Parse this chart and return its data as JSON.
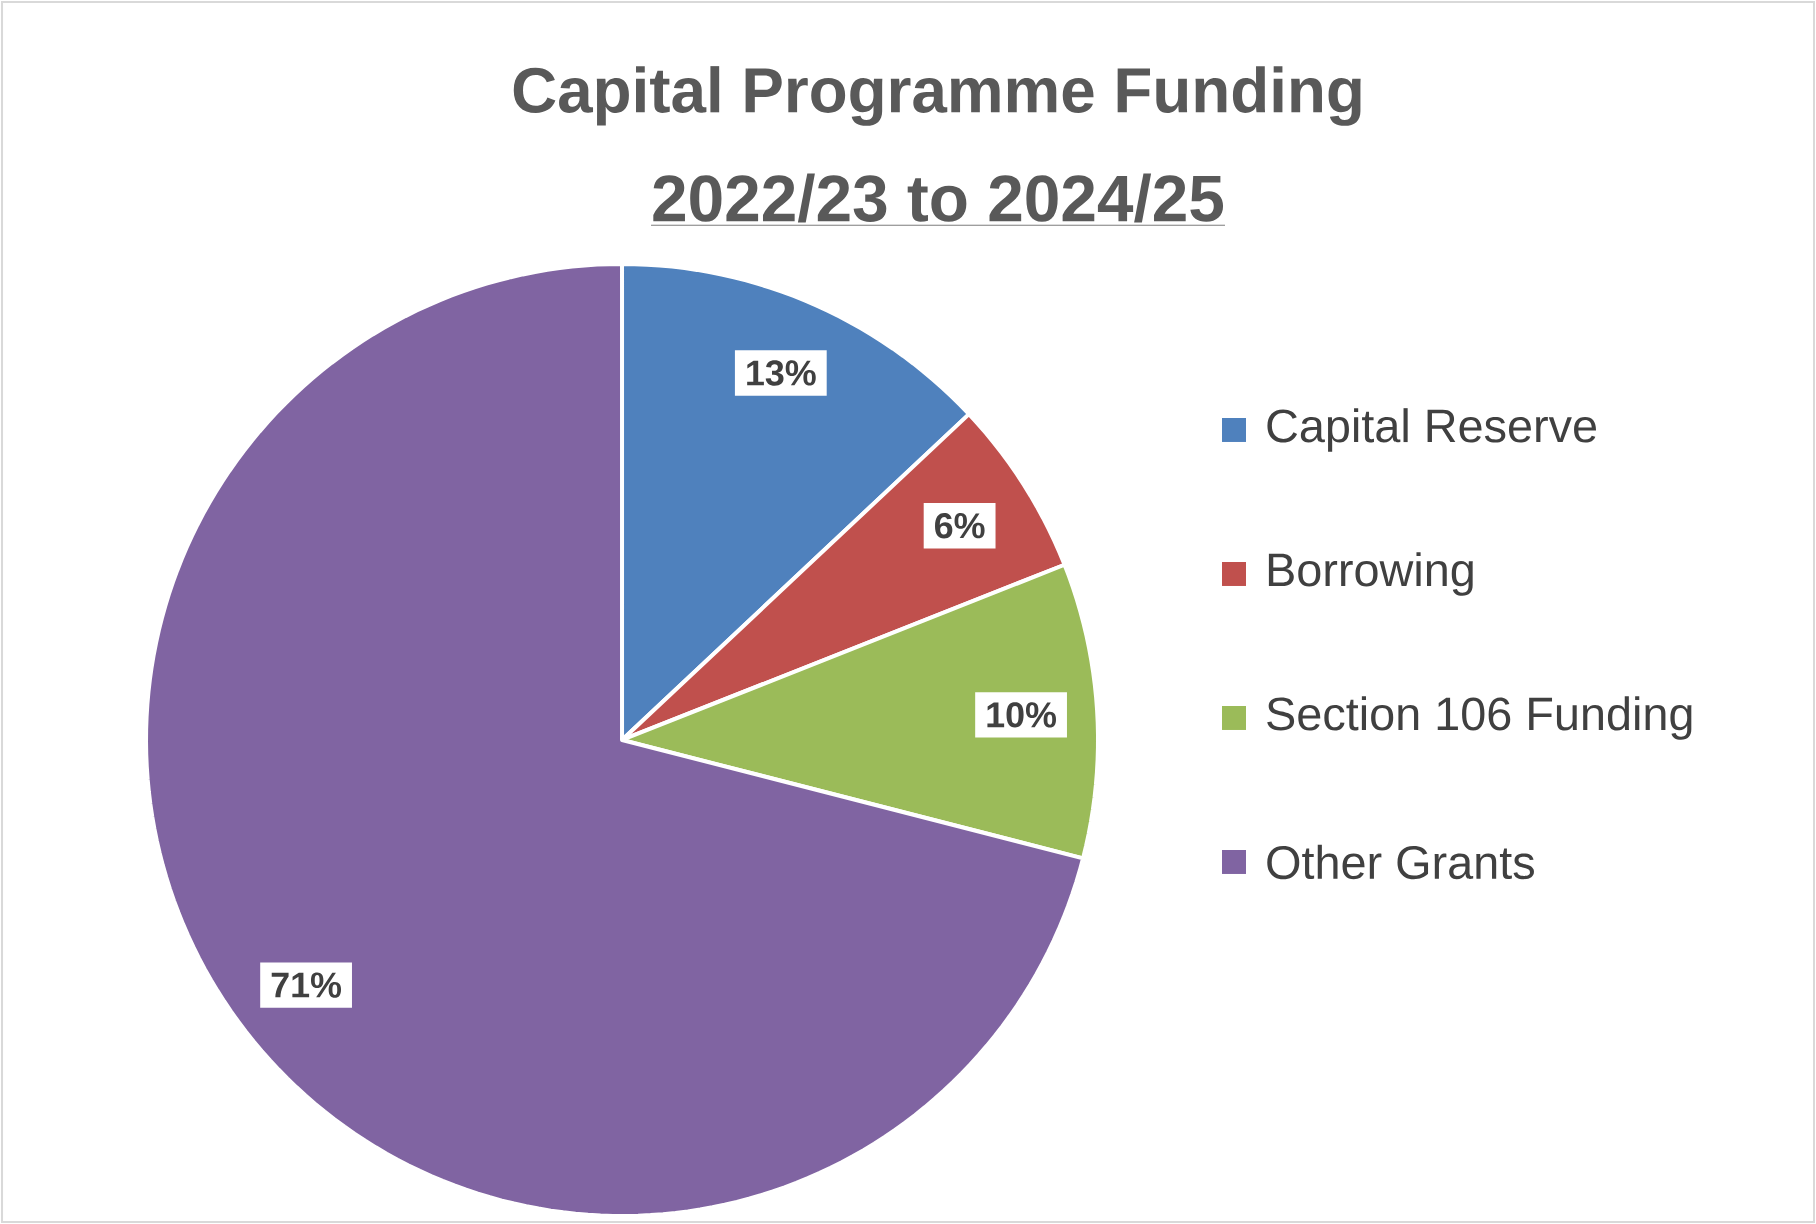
{
  "chart_data": {
    "type": "pie",
    "title": "Capital Programme Funding",
    "subtitle": "2022/23 to 2024/25",
    "categories": [
      "Capital Reserve",
      "Borrowing",
      "Section 106 Funding",
      "Other Grants"
    ],
    "values": [
      13,
      6,
      10,
      71
    ],
    "colors": [
      "#4f81bd",
      "#c0504d",
      "#9bbb59",
      "#8064a2"
    ],
    "value_labels": [
      "13%",
      "6%",
      "10%",
      "71%"
    ],
    "legend": "right"
  }
}
